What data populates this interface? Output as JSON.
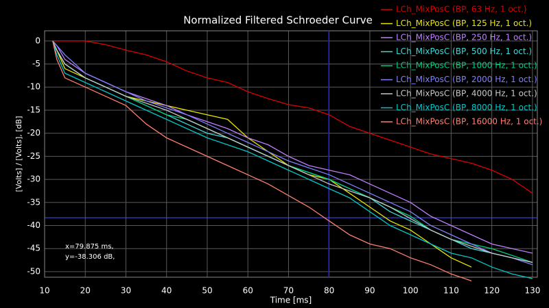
{
  "chart_data": {
    "type": "line",
    "title": "Normalized Filtered Schroeder Curve",
    "x_label": "Time [ms]",
    "y_label": "[Volts] / [Volts], [dB]",
    "xlim": [
      10,
      131.2
    ],
    "ylim": [
      -51.2,
      2.2
    ],
    "xticks": [
      10,
      20,
      30,
      40,
      50,
      60,
      70,
      80,
      90,
      100,
      110,
      120,
      130
    ],
    "yticks": [
      0,
      -5,
      -10,
      -15,
      -20,
      -25,
      -30,
      -35,
      -40,
      -45,
      -50
    ],
    "grid": true,
    "cursor": {
      "x": 79.875,
      "y": -38.306,
      "labels": [
        "x=79.875 ms,",
        "y=-38.306 dB,"
      ]
    },
    "x": [
      12,
      13,
      15,
      20,
      25,
      30,
      35,
      40,
      45,
      50,
      55,
      60,
      65,
      70,
      75,
      80,
      85,
      90,
      95,
      100,
      105,
      110,
      115,
      120,
      125,
      130
    ],
    "series": [
      {
        "name": "LCh_MixPosC (BP, 63 Hz, 1 oct.)",
        "color": "#e00000",
        "values": [
          0,
          0,
          0,
          0,
          -0.8,
          -2,
          -3,
          -4.5,
          -6.5,
          -8,
          -9,
          -11,
          -12.5,
          -13.8,
          -14.5,
          -16,
          -18.5,
          -20,
          -21.5,
          -23,
          -24.5,
          -25.5,
          -26.5,
          -28,
          -30,
          -33
        ]
      },
      {
        "name": "LCh_MixPosC (BP, 125 Hz, 1 oct.)",
        "color": "#e8e800",
        "values": [
          0,
          -2,
          -6,
          -8,
          -10,
          -12,
          -13,
          -14,
          -15,
          -16,
          -17,
          -21,
          -24,
          -27,
          -29,
          -30,
          -33,
          -36,
          -39,
          -41,
          -44,
          -47,
          -49,
          null,
          null,
          null
        ]
      },
      {
        "name": "LCh_MixPosC (BP, 250 Hz, 1 oct.)",
        "color": "#c080ff",
        "values": [
          0,
          -1,
          -4,
          -7,
          -9,
          -11,
          -12.5,
          -14,
          -16,
          -17.5,
          -19,
          -21,
          -22.5,
          -25,
          -27,
          -28,
          -29,
          -31,
          -33,
          -35,
          -38,
          -40,
          -42,
          -44,
          -45,
          -46
        ]
      },
      {
        "name": "LCh_MixPosC (BP, 500 Hz, 1 oct.)",
        "color": "#40d8d8",
        "values": [
          0,
          -2,
          -5,
          -8,
          -10,
          -12,
          -14,
          -16,
          -18,
          -20,
          -21,
          -23,
          -25,
          -27,
          -28.5,
          -30,
          -32,
          -34,
          -37,
          -39,
          -41,
          -43,
          -45,
          -46,
          -47,
          -48
        ]
      },
      {
        "name": "LCh_MixPosC (BP, 1000 Hz, 1 oct.)",
        "color": "#00d080",
        "values": [
          0,
          -2,
          -5,
          -8,
          -10,
          -12,
          -14,
          -16,
          -17,
          -19,
          -21,
          -23,
          -25,
          -27,
          -28.5,
          -30,
          -32,
          -34,
          -36,
          -38,
          -41,
          -43,
          -44,
          -45,
          -46.5,
          -48
        ]
      },
      {
        "name": "LCh_MixPosC (BP, 2000 Hz, 1 oct.)",
        "color": "#8080ff",
        "values": [
          0,
          -1,
          -3,
          -7,
          -9,
          -11,
          -13,
          -14.5,
          -16,
          -18,
          -20,
          -22,
          -24,
          -26,
          -27.5,
          -29,
          -31,
          -33,
          -35,
          -37,
          -40,
          -42,
          -44,
          -46,
          -47,
          -48.5
        ]
      },
      {
        "name": "LCh_MixPosC (BP, 4000 Hz, 1 oct.)",
        "color": "#c8c8c8",
        "values": [
          0,
          -2,
          -5,
          -8,
          -10,
          -12,
          -13.5,
          -15,
          -17,
          -19,
          -21,
          -23,
          -25,
          -27,
          -29,
          -31,
          -32.5,
          -34,
          -36,
          -38.5,
          -41,
          -43,
          -44.5,
          -46,
          -47,
          -48
        ]
      },
      {
        "name": "LCh_MixPosC (BP, 8000 Hz, 1 oct.)",
        "color": "#00c8c8",
        "values": [
          0,
          -3,
          -7,
          -9,
          -11,
          -13,
          -15,
          -17,
          -19,
          -21,
          -22.5,
          -24,
          -26,
          -28,
          -30,
          -32,
          -34,
          -37,
          -40,
          -42,
          -44,
          -46,
          -47,
          -49,
          -50.5,
          -51.5
        ]
      },
      {
        "name": "LCh_MixPosC (BP, 16000 Hz, 1 oct.)",
        "color": "#ff8070",
        "values": [
          0,
          -4,
          -8,
          -10,
          -12,
          -14,
          -18,
          -21,
          -23,
          -25,
          -27,
          -29,
          -31,
          -33.5,
          -36,
          -39,
          -42,
          -44,
          -45,
          -47,
          -48.5,
          -50.5,
          -52,
          null,
          null,
          null
        ]
      }
    ]
  }
}
